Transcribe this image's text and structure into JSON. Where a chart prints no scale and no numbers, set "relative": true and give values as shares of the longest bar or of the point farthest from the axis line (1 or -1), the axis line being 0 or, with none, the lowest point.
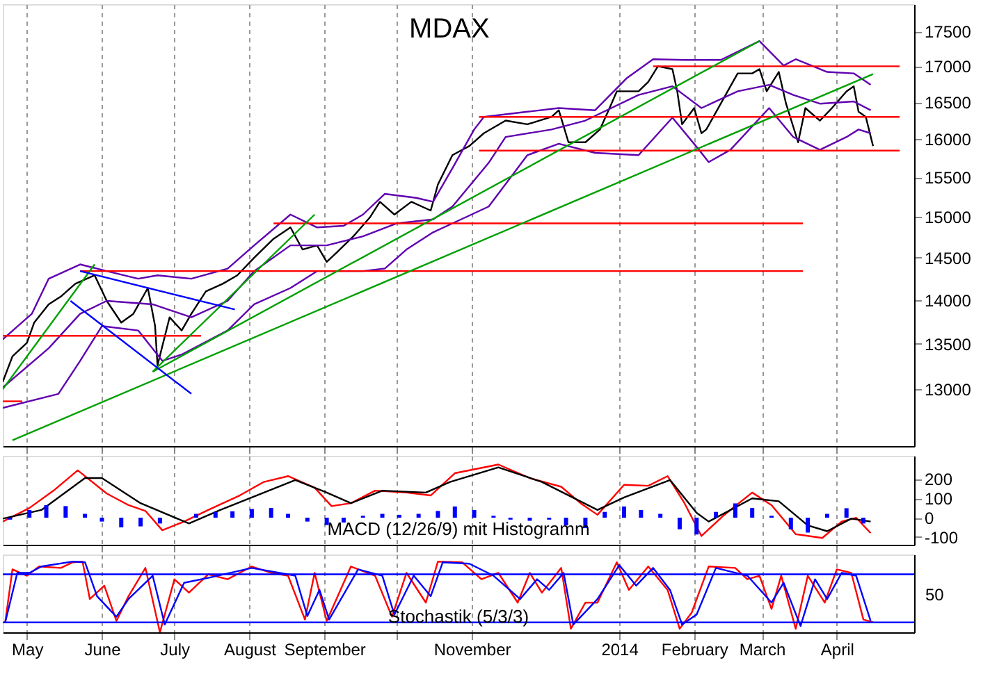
{
  "chart_data": [
    {
      "type": "line",
      "title": "MDAX",
      "log": true,
      "grid": "x",
      "tick_labels": "y",
      "xlim": [
        "2013-04-21",
        "2014-05-03"
      ],
      "xticks": [
        {
          "value": "2013-05-01",
          "label": null
        },
        {
          "value": "2013-06-01",
          "label": null
        },
        {
          "value": "2013-07-01",
          "label": null
        },
        {
          "value": "2013-08-01",
          "label": null
        },
        {
          "value": "2013-09-01",
          "label": null
        },
        {
          "value": "2013-10-01",
          "label": null
        },
        {
          "value": "2013-11-01",
          "label": null
        },
        {
          "value": "2014-01-01",
          "label": null
        },
        {
          "value": "2014-02-01",
          "label": null
        },
        {
          "value": "2014-03-01",
          "label": null
        },
        {
          "value": "2014-04-01",
          "label": null
        }
      ],
      "ylim": [
        12400,
        17900
      ],
      "yticks": [
        13000,
        13500,
        14000,
        14500,
        15000,
        15500,
        16000,
        16500,
        17000,
        17500
      ],
      "series": [
        {
          "color": "#000000",
          "x": [
            "2013-04-21",
            "2013-04-25",
            "2013-05-01",
            "2013-05-04",
            "2013-05-10",
            "2013-05-15",
            "2013-05-21",
            "2013-05-29",
            "2013-06-03",
            "2013-06-09",
            "2013-06-14",
            "2013-06-20",
            "2013-06-23",
            "2013-06-24",
            "2013-06-29",
            "2013-07-04",
            "2013-07-08",
            "2013-07-14",
            "2013-07-21",
            "2013-07-27",
            "2013-08-03",
            "2013-08-11",
            "2013-08-18",
            "2013-08-23",
            "2013-08-29",
            "2013-09-02",
            "2013-09-06",
            "2013-09-13",
            "2013-09-20",
            "2013-09-24",
            "2013-09-30",
            "2013-10-07",
            "2013-10-15",
            "2013-10-18",
            "2013-10-24",
            "2013-10-31",
            "2013-11-06",
            "2013-11-15",
            "2013-11-24",
            "2013-12-04",
            "2013-12-07",
            "2013-12-11",
            "2013-12-18",
            "2013-12-24",
            "2013-12-28",
            "2013-12-31",
            "2014-01-09",
            "2014-01-13",
            "2014-01-17",
            "2014-01-23",
            "2014-01-25",
            "2014-01-27",
            "2014-02-01",
            "2014-02-04",
            "2014-02-06",
            "2014-02-12",
            "2014-02-16",
            "2014-02-19",
            "2014-02-25",
            "2014-02-28",
            "2014-03-03",
            "2014-03-08",
            "2014-03-11",
            "2014-03-16",
            "2014-03-19",
            "2014-03-25",
            "2014-03-30",
            "2014-04-05",
            "2014-04-08",
            "2014-04-10",
            "2014-04-13",
            "2014-04-16"
          ],
          "values": [
            13080,
            13360,
            13510,
            13740,
            13950,
            14040,
            14190,
            14290,
            13990,
            13740,
            13840,
            14140,
            13700,
            13260,
            13800,
            13650,
            13840,
            14100,
            14190,
            14290,
            14500,
            14730,
            14870,
            14600,
            14650,
            14450,
            14560,
            14760,
            15000,
            15190,
            15030,
            15190,
            15080,
            15410,
            15790,
            15910,
            16080,
            16250,
            16200,
            16300,
            16390,
            15960,
            15960,
            16130,
            16420,
            16650,
            16650,
            16780,
            17000,
            16960,
            16650,
            16200,
            16420,
            16080,
            16130,
            16480,
            16720,
            16900,
            16900,
            16960,
            16650,
            16920,
            16480,
            15960,
            16420,
            16250,
            16420,
            16650,
            16720,
            16370,
            16300,
            15910
          ]
        },
        {
          "color": "#6000b0",
          "x": [
            "2013-04-21",
            "2013-05-03",
            "2013-05-10",
            "2013-05-23",
            "2013-06-03",
            "2013-06-16",
            "2013-06-24",
            "2013-07-08",
            "2013-07-23",
            "2013-08-03",
            "2013-08-18",
            "2013-08-29",
            "2013-09-09",
            "2013-09-17",
            "2013-09-26",
            "2013-10-09",
            "2013-10-16",
            "2013-10-24",
            "2013-11-02",
            "2013-11-06",
            "2013-11-24",
            "2013-12-07",
            "2013-12-22",
            "2014-01-04",
            "2014-01-15",
            "2014-01-28",
            "2014-02-12",
            "2014-02-28",
            "2014-03-10",
            "2014-03-15",
            "2014-03-28",
            "2014-04-08",
            "2014-04-15"
          ],
          "values": [
            13550,
            13840,
            14250,
            14420,
            14340,
            14250,
            14290,
            14250,
            14370,
            14650,
            15030,
            14870,
            14890,
            15030,
            15290,
            15240,
            15190,
            15620,
            16130,
            16300,
            16370,
            16420,
            16390,
            16830,
            17100,
            17090,
            17090,
            17360,
            17010,
            17100,
            16920,
            16900,
            16740
          ]
        },
        {
          "color": "#6000b0",
          "x": [
            "2013-04-21",
            "2013-05-10",
            "2013-05-23",
            "2013-06-03",
            "2013-06-22",
            "2013-07-08",
            "2013-07-23",
            "2013-08-03",
            "2013-08-18",
            "2013-09-02",
            "2013-09-17",
            "2013-10-01",
            "2013-10-16",
            "2013-10-24",
            "2013-11-08",
            "2013-11-15",
            "2013-12-04",
            "2013-12-18",
            "2014-01-09",
            "2014-01-23",
            "2014-02-04",
            "2014-02-19",
            "2014-03-04",
            "2014-03-14",
            "2014-03-25",
            "2014-04-08",
            "2014-04-15"
          ],
          "values": [
            13020,
            13450,
            13840,
            13990,
            13950,
            13800,
            13990,
            14340,
            14650,
            14650,
            14760,
            14920,
            14970,
            15130,
            15690,
            16030,
            16130,
            16250,
            16600,
            16720,
            16420,
            16650,
            16740,
            16600,
            16480,
            16510,
            16390
          ]
        },
        {
          "color": "#6000b0",
          "x": [
            "2013-04-21",
            "2013-05-14",
            "2013-05-23",
            "2013-06-01",
            "2013-06-16",
            "2013-06-26",
            "2013-07-04",
            "2013-07-23",
            "2013-08-03",
            "2013-08-18",
            "2013-08-29",
            "2013-09-17",
            "2013-09-26",
            "2013-10-05",
            "2013-10-16",
            "2013-10-24",
            "2013-11-08",
            "2013-11-24",
            "2013-12-07",
            "2013-12-22",
            "2014-01-09",
            "2014-01-23",
            "2014-02-03",
            "2014-02-07",
            "2014-02-16",
            "2014-03-04",
            "2014-03-14",
            "2014-03-25",
            "2014-04-05",
            "2014-04-10",
            "2014-04-15"
          ],
          "values": [
            12800,
            12950,
            13310,
            13700,
            13650,
            13310,
            13380,
            13650,
            13950,
            14140,
            14340,
            14340,
            14370,
            14600,
            14810,
            14920,
            15130,
            15790,
            15940,
            15820,
            15790,
            16290,
            15860,
            15700,
            15860,
            16420,
            16030,
            15860,
            16030,
            16130,
            16080
          ]
        },
        {
          "color": "#ff0000",
          "x": [
            "2014-01-15",
            "2014-04-27"
          ],
          "values": [
            17000,
            17000
          ]
        },
        {
          "color": "#ff0000",
          "x": [
            "2013-11-04",
            "2014-04-27"
          ],
          "values": [
            16300,
            16300
          ]
        },
        {
          "color": "#ff0000",
          "x": [
            "2013-11-04",
            "2014-04-27"
          ],
          "values": [
            15850,
            15850
          ]
        },
        {
          "color": "#ff0000",
          "x": [
            "2013-08-11",
            "2014-03-18"
          ],
          "values": [
            14920,
            14920
          ]
        },
        {
          "color": "#ff0000",
          "x": [
            "2013-05-23",
            "2014-03-18"
          ],
          "values": [
            14340,
            14340
          ]
        },
        {
          "color": "#ff0000",
          "x": [
            "2013-04-21",
            "2013-07-12"
          ],
          "values": [
            13590,
            13590
          ]
        },
        {
          "color": "#ff0000",
          "x": [
            "2013-04-21",
            "2013-04-29"
          ],
          "values": [
            12870,
            12870
          ]
        },
        {
          "color": "#00a000",
          "x": [
            "2013-04-21",
            "2013-05-29"
          ],
          "values": [
            13000,
            14420
          ]
        },
        {
          "color": "#00a000",
          "x": [
            "2013-06-22",
            "2013-08-28"
          ],
          "values": [
            13190,
            15030
          ]
        },
        {
          "color": "#00a000",
          "x": [
            "2013-06-22",
            "2014-02-28"
          ],
          "values": [
            13190,
            17360
          ]
        },
        {
          "color": "#00a000",
          "x": [
            "2013-04-25",
            "2014-04-16"
          ],
          "values": [
            12460,
            16890
          ]
        },
        {
          "color": "#0000ff",
          "x": [
            "2013-05-23",
            "2013-07-26"
          ],
          "values": [
            14340,
            13890
          ]
        },
        {
          "color": "#0000ff",
          "x": [
            "2013-05-19",
            "2013-07-08"
          ],
          "values": [
            13990,
            12950
          ]
        }
      ]
    },
    {
      "type": "line",
      "grid": "x",
      "tick_labels": "y",
      "annotations": [
        "MACD (12/26/9) mit Histogramm"
      ],
      "xlim": [
        "2013-04-21",
        "2014-05-03"
      ],
      "xticks": [
        {
          "value": "2013-05-01",
          "label": null
        },
        {
          "value": "2013-06-01",
          "label": null
        },
        {
          "value": "2013-07-01",
          "label": null
        },
        {
          "value": "2013-08-01",
          "label": null
        },
        {
          "value": "2013-09-01",
          "label": null
        },
        {
          "value": "2013-10-01",
          "label": null
        },
        {
          "value": "2013-11-01",
          "label": null
        },
        {
          "value": "2014-01-01",
          "label": null
        },
        {
          "value": "2014-02-01",
          "label": null
        },
        {
          "value": "2014-03-01",
          "label": null
        },
        {
          "value": "2014-04-01",
          "label": null
        }
      ],
      "ylim": [
        -140,
        320
      ],
      "yticks": [
        -100,
        0,
        100,
        200
      ],
      "series": [
        {
          "type": "bar",
          "color": "#0000ff",
          "x": [
            "2013-04-24",
            "2013-05-02",
            "2013-05-09",
            "2013-05-17",
            "2013-05-25",
            "2013-06-01",
            "2013-06-09",
            "2013-06-17",
            "2013-06-25",
            "2013-07-02",
            "2013-07-10",
            "2013-07-18",
            "2013-07-25",
            "2013-08-02",
            "2013-08-10",
            "2013-08-17",
            "2013-08-25",
            "2013-09-02",
            "2013-09-09",
            "2013-09-17",
            "2013-09-25",
            "2013-10-02",
            "2013-10-10",
            "2013-10-18",
            "2013-10-25",
            "2013-11-02",
            "2013-11-10",
            "2013-11-17",
            "2013-11-25",
            "2013-12-03",
            "2013-12-10",
            "2013-12-18",
            "2013-12-26",
            "2014-01-03",
            "2014-01-10",
            "2014-01-18",
            "2014-01-26",
            "2014-02-02",
            "2014-02-10",
            "2014-02-18",
            "2014-02-25",
            "2014-03-05",
            "2014-03-13",
            "2014-03-20",
            "2014-03-28",
            "2014-04-05",
            "2014-04-12"
          ],
          "values": [
            -10,
            40,
            65,
            60,
            20,
            -20,
            -50,
            -45,
            -30,
            0,
            20,
            30,
            33,
            45,
            50,
            20,
            -20,
            -38,
            -25,
            10,
            20,
            15,
            20,
            35,
            58,
            40,
            10,
            -10,
            -16,
            -10,
            -40,
            -54,
            30,
            58,
            40,
            20,
            -60,
            -87,
            30,
            74,
            50,
            10,
            -60,
            -77,
            20,
            49,
            -30
          ]
        },
        {
          "color": "#ff0000",
          "x": [
            "2013-04-21",
            "2013-05-02",
            "2013-05-12",
            "2013-05-22",
            "2013-06-03",
            "2013-06-12",
            "2013-06-19",
            "2013-06-26",
            "2013-07-05",
            "2013-07-15",
            "2013-07-28",
            "2013-08-07",
            "2013-08-17",
            "2013-08-28",
            "2013-09-04",
            "2013-09-12",
            "2013-09-22",
            "2013-10-05",
            "2013-10-15",
            "2013-10-25",
            "2013-11-12",
            "2013-11-25",
            "2013-12-08",
            "2013-12-16",
            "2013-12-23",
            "2014-01-03",
            "2014-01-13",
            "2014-01-21",
            "2014-01-28",
            "2014-02-04",
            "2014-02-13",
            "2014-02-25",
            "2014-03-05",
            "2014-03-15",
            "2014-03-26",
            "2014-04-03",
            "2014-04-09",
            "2014-04-15"
          ],
          "values": [
            -20,
            50,
            140,
            245,
            125,
            65,
            35,
            -65,
            -20,
            40,
            115,
            185,
            215,
            155,
            60,
            75,
            140,
            130,
            115,
            230,
            275,
            205,
            160,
            75,
            15,
            170,
            165,
            215,
            75,
            -95,
            10,
            130,
            65,
            -85,
            -105,
            -20,
            0,
            -80
          ]
        },
        {
          "color": "#000000",
          "x": [
            "2013-04-21",
            "2013-05-07",
            "2013-05-25",
            "2013-06-01",
            "2013-06-17",
            "2013-07-07",
            "2013-07-20",
            "2013-08-02",
            "2013-08-20",
            "2013-09-02",
            "2013-09-12",
            "2013-09-25",
            "2013-10-13",
            "2013-10-23",
            "2013-11-12",
            "2013-11-30",
            "2013-12-23",
            "2014-01-03",
            "2014-01-22",
            "2014-02-02",
            "2014-02-07",
            "2014-02-25",
            "2014-03-08",
            "2014-03-20",
            "2014-03-28",
            "2014-04-07",
            "2014-04-15"
          ],
          "values": [
            -5,
            40,
            205,
            205,
            75,
            -30,
            40,
            105,
            195,
            130,
            75,
            140,
            130,
            185,
            260,
            185,
            40,
            105,
            195,
            25,
            -20,
            100,
            85,
            -40,
            -70,
            -5,
            -20
          ]
        }
      ]
    },
    {
      "type": "line",
      "grid": "x",
      "annotations": [
        "Stochastik (5/3/3)",
        "50"
      ],
      "xlim": [
        "2013-04-21",
        "2014-05-03"
      ],
      "xticks": [
        {
          "value": "2013-05-01",
          "label": "May"
        },
        {
          "value": "2013-06-01",
          "label": "June"
        },
        {
          "value": "2013-07-01",
          "label": "July"
        },
        {
          "value": "2013-08-01",
          "label": "August"
        },
        {
          "value": "2013-09-01",
          "label": "September"
        },
        {
          "value": "2013-10-01",
          "label": null
        },
        {
          "value": "2013-11-01",
          "label": "November"
        },
        {
          "value": "2014-01-01",
          "label": "2014"
        },
        {
          "value": "2014-02-01",
          "label": "February"
        },
        {
          "value": "2014-03-01",
          "label": "March"
        },
        {
          "value": "2014-04-01",
          "label": "April"
        }
      ],
      "relative": true,
      "ref_lines": [
        {
          "axis": "y",
          "value": 0.82,
          "color": "#0000ff"
        },
        {
          "axis": "y",
          "value": 0.14,
          "color": "#0000ff"
        }
      ],
      "series": [
        {
          "color": "#ff0000",
          "x": [
            "2013-04-22",
            "2013-04-25",
            "2013-05-01",
            "2013-05-06",
            "2013-05-15",
            "2013-05-20",
            "2013-05-24",
            "2013-05-27",
            "2013-06-02",
            "2013-06-07",
            "2013-06-12",
            "2013-06-19",
            "2013-06-25",
            "2013-07-01",
            "2013-07-07",
            "2013-07-15",
            "2013-07-23",
            "2013-08-02",
            "2013-08-10",
            "2013-08-17",
            "2013-08-24",
            "2013-08-28",
            "2013-09-02",
            "2013-09-12",
            "2013-09-22",
            "2013-09-29",
            "2013-10-05",
            "2013-10-13",
            "2013-10-18",
            "2013-10-28",
            "2013-11-05",
            "2013-11-12",
            "2013-11-20",
            "2013-11-25",
            "2013-11-30",
            "2013-12-08",
            "2013-12-12",
            "2013-12-18",
            "2013-12-23",
            "2013-12-31",
            "2014-01-05",
            "2014-01-13",
            "2014-01-21",
            "2014-01-26",
            "2014-01-31",
            "2014-02-07",
            "2014-02-18",
            "2014-02-23",
            "2014-02-28",
            "2014-03-05",
            "2014-03-09",
            "2014-03-15",
            "2014-03-20",
            "2014-03-27",
            "2014-04-01",
            "2014-04-07",
            "2014-04-12",
            "2014-04-16"
          ],
          "values": [
            0.14,
            0.89,
            0.8,
            0.93,
            0.91,
            0.99,
            1.0,
            0.47,
            0.66,
            0.16,
            0.51,
            0.91,
            0,
            0.75,
            0.56,
            0.82,
            0.75,
            0.93,
            0.84,
            0.8,
            0.18,
            0.84,
            0.16,
            0.93,
            0.8,
            0.22,
            0.84,
            0.42,
            1.0,
            0.99,
            0.75,
            0.84,
            0.42,
            0.84,
            0.56,
            0.91,
            0.05,
            0.42,
            0.42,
            0.99,
            0.6,
            0.93,
            0.6,
            0.05,
            0.28,
            0.93,
            0.91,
            0.75,
            0.8,
            0.33,
            0.8,
            0.05,
            0.8,
            0.42,
            0.89,
            0.84,
            0.18,
            0.14
          ]
        },
        {
          "color": "#0000ff",
          "x": [
            "2013-04-22",
            "2013-04-27",
            "2013-05-02",
            "2013-05-07",
            "2013-05-20",
            "2013-05-25",
            "2013-05-30",
            "2013-06-07",
            "2013-06-12",
            "2013-06-22",
            "2013-06-27",
            "2013-07-05",
            "2013-07-15",
            "2013-08-02",
            "2013-08-20",
            "2013-08-25",
            "2013-08-30",
            "2013-09-03",
            "2013-09-15",
            "2013-09-25",
            "2013-09-30",
            "2013-10-08",
            "2013-10-15",
            "2013-10-20",
            "2013-10-31",
            "2013-11-10",
            "2013-11-21",
            "2013-11-28",
            "2013-12-03",
            "2013-12-09",
            "2013-12-13",
            "2013-12-23",
            "2014-01-01",
            "2014-01-08",
            "2014-01-15",
            "2014-01-22",
            "2014-01-27",
            "2014-02-02",
            "2014-02-10",
            "2014-02-23",
            "2014-03-05",
            "2014-03-10",
            "2014-03-17",
            "2014-03-23",
            "2014-03-28",
            "2014-04-03",
            "2014-04-09",
            "2014-04-15"
          ],
          "values": [
            0.14,
            0.84,
            0.84,
            0.93,
            1.0,
            0.99,
            0.51,
            0.22,
            0.47,
            0.8,
            0.11,
            0.7,
            0.77,
            0.91,
            0.8,
            0.23,
            0.6,
            0.18,
            0.89,
            0.8,
            0.25,
            0.8,
            0.51,
            0.99,
            0.97,
            0.8,
            0.47,
            0.75,
            0.6,
            0.84,
            0.11,
            0.47,
            0.95,
            0.66,
            0.91,
            0.6,
            0.11,
            0.25,
            0.91,
            0.8,
            0.42,
            0.7,
            0.09,
            0.75,
            0.47,
            0.84,
            0.8,
            0.16
          ]
        }
      ]
    }
  ]
}
